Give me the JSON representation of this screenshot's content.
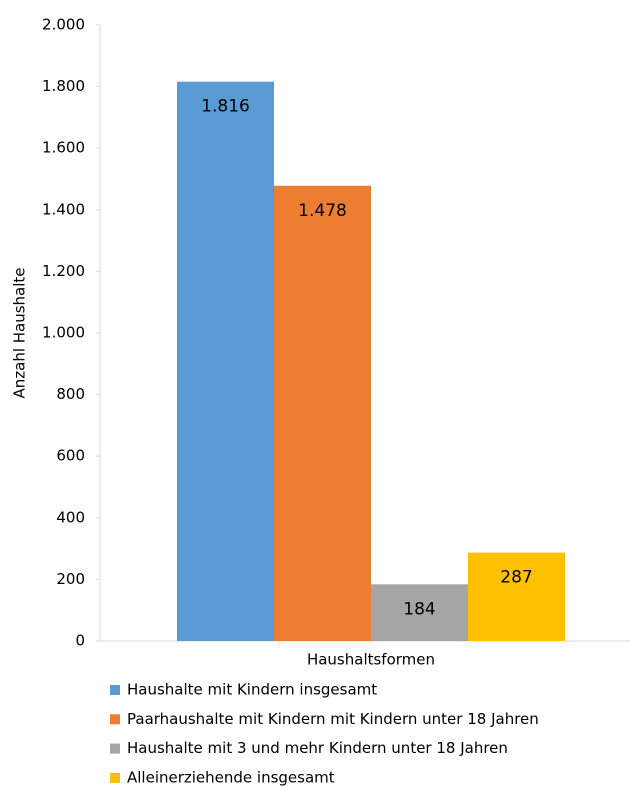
{
  "chart_data": {
    "type": "bar",
    "y_label": "Anzahl Haushalte",
    "categories": [
      "Haushaltsformen"
    ],
    "series": [
      {
        "name": "Haushalte mit Kindern insgesamt",
        "color": "#5b9bd5",
        "values": [
          1816
        ],
        "value_labels": [
          "1.816"
        ]
      },
      {
        "name": "Paarhaushalte mit Kindern mit Kindern unter 18 Jahren",
        "color": "#ed7d31",
        "values": [
          1478
        ],
        "value_labels": [
          "1.478"
        ]
      },
      {
        "name": "Haushalte mit 3 und mehr Kindern unter 18 Jahren",
        "color": "#a5a5a5",
        "values": [
          184
        ]
      },
      {
        "name": "Alleinerziehende insgesamt",
        "color": "#ffc000",
        "values": [
          287
        ]
      }
    ],
    "ylim": [
      0,
      2000
    ],
    "yticks": [
      0,
      200,
      400,
      600,
      800,
      {
        "value": 1000,
        "label": "1.000"
      },
      {
        "value": 1200,
        "label": "1.200"
      },
      {
        "value": 1400,
        "label": "1.400"
      },
      {
        "value": 1600,
        "label": "1.600"
      },
      {
        "value": 1800,
        "label": "1.800"
      },
      {
        "value": 2000,
        "label": "2.000"
      }
    ],
    "grid": false,
    "legend": "bottom"
  }
}
